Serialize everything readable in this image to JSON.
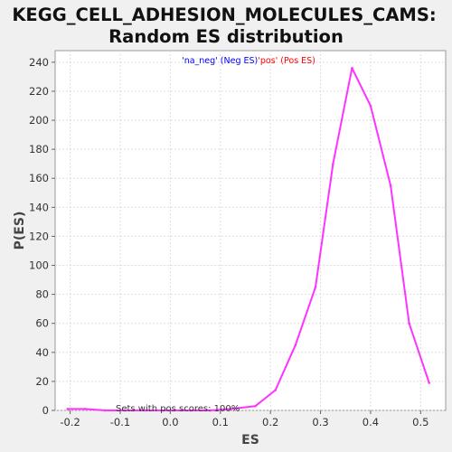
{
  "chart_data": {
    "type": "line",
    "title": "KEGG_CELL_ADHESION_MOLECULES_CAMS:",
    "subtitle": "Random ES distribution",
    "xlabel": "ES",
    "ylabel": "P(ES)",
    "xlim": [
      -0.23,
      0.55
    ],
    "ylim": [
      0,
      248
    ],
    "x_ticks": [
      -0.2,
      -0.1,
      0.0,
      0.1,
      0.2,
      0.3,
      0.4,
      0.5
    ],
    "x_tick_labels": [
      "-0.2",
      "-0.1",
      "0.0",
      "0.1",
      "0.2",
      "0.3",
      "0.4",
      "0.5"
    ],
    "y_ticks": [
      0,
      20,
      40,
      60,
      80,
      100,
      120,
      140,
      160,
      180,
      200,
      220,
      240
    ],
    "y_tick_labels": [
      "0",
      "20",
      "40",
      "60",
      "80",
      "100",
      "120",
      "140",
      "160",
      "180",
      "200",
      "220",
      "240"
    ],
    "grid": true,
    "legend_position": "top-center",
    "legend": [
      {
        "label": "'na_neg' (Neg ES)",
        "color": "#0000ff"
      },
      {
        "label": "'pos' (Pos ES)",
        "color": "#ff0000"
      }
    ],
    "annotation": "Sets with pos scores: 100%",
    "series": [
      {
        "color": "#ff33ff",
        "x": [
          -0.205,
          -0.17,
          -0.13,
          -0.09,
          -0.05,
          0.0,
          0.04,
          0.08,
          0.12,
          0.17,
          0.21,
          0.25,
          0.29,
          0.325,
          0.363,
          0.4,
          0.44,
          0.477,
          0.517
        ],
        "y": [
          1,
          1,
          0,
          0,
          0,
          0,
          0,
          0,
          1,
          3,
          14,
          45,
          85,
          170,
          236,
          210,
          155,
          60,
          19
        ]
      }
    ]
  }
}
